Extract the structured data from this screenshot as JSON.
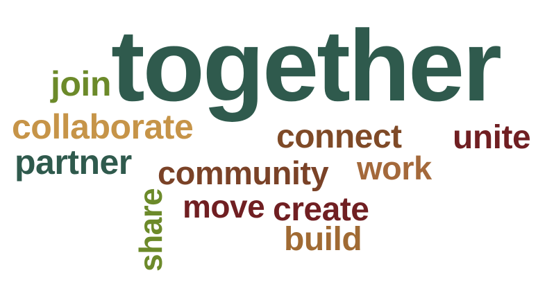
{
  "words": {
    "together": {
      "text": "together",
      "color": "#2f5a4d"
    },
    "join": {
      "text": "join",
      "color": "#6c8a2a"
    },
    "collaborate": {
      "text": "collaborate",
      "color": "#c69448"
    },
    "partner": {
      "text": "partner",
      "color": "#2f5a4d"
    },
    "connect": {
      "text": "connect",
      "color": "#7f4a27"
    },
    "unite": {
      "text": "unite",
      "color": "#701f22"
    },
    "community": {
      "text": "community",
      "color": "#7a4227"
    },
    "work": {
      "text": "work",
      "color": "#a4693b"
    },
    "move": {
      "text": "move",
      "color": "#701f22"
    },
    "create": {
      "text": "create",
      "color": "#701f22"
    },
    "build": {
      "text": "build",
      "color": "#a06a33"
    },
    "share": {
      "text": "share",
      "color": "#6c8a2a"
    }
  }
}
